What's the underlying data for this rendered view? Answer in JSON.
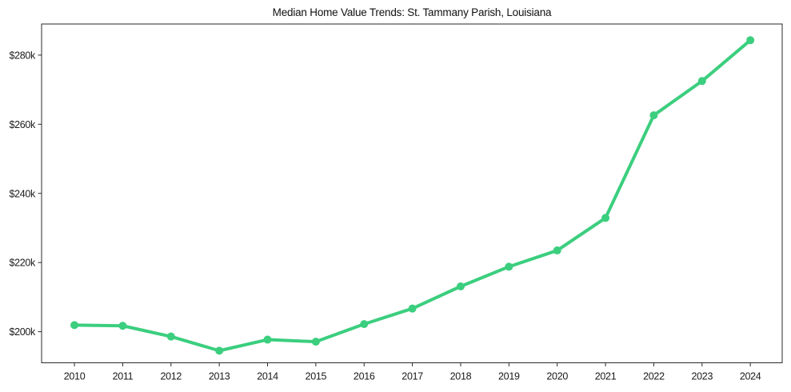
{
  "figure": {
    "background": "#ffffff"
  },
  "chart_data": {
    "type": "line",
    "title": "Median Home Value Trends: St. Tammany Parish, Louisiana",
    "x": [
      2010,
      2011,
      2012,
      2013,
      2014,
      2015,
      2016,
      2017,
      2018,
      2019,
      2020,
      2021,
      2022,
      2023,
      2024
    ],
    "values": [
      201900,
      201700,
      198600,
      194500,
      197700,
      197100,
      202200,
      206700,
      213100,
      218800,
      223500,
      232900,
      262600,
      272500,
      284300
    ],
    "series": [
      {
        "name": "Median home value",
        "color": "#3bce7e"
      }
    ],
    "xticks": {
      "labels": [
        "2010",
        "2011",
        "2012",
        "2013",
        "2014",
        "2015",
        "2016",
        "2017",
        "2018",
        "2019",
        "2020",
        "2021",
        "2022",
        "2023",
        "2024"
      ]
    },
    "yticks": {
      "values": [
        200000,
        220000,
        240000,
        260000,
        280000
      ],
      "labels": [
        "$200k",
        "$220k",
        "$240k",
        "$260k",
        "$280k"
      ]
    },
    "xlabel": "",
    "ylabel": "",
    "ylim": [
      191000,
      289000
    ],
    "xlim": [
      2009.32,
      2024.66
    ],
    "grid": false,
    "legend": false,
    "marker": "circle",
    "line_width": 4,
    "marker_diameter": 10,
    "axis_color": "#2a2a2a",
    "text_color": "#1a1a1a"
  }
}
